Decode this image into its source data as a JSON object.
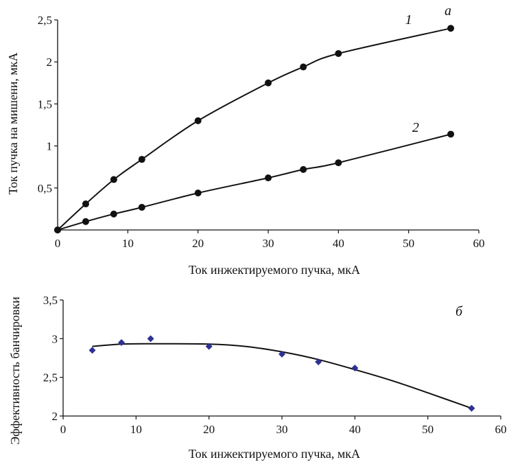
{
  "chart_data": [
    {
      "type": "line",
      "panel_label": "а",
      "xlabel": "Ток инжектируемого пучка, мкА",
      "ylabel": "Ток пучка на мишени, мкА",
      "xlim": [
        0,
        60
      ],
      "ylim": [
        0,
        2.5
      ],
      "x_ticks": [
        "0",
        "10",
        "20",
        "30",
        "40",
        "50",
        "60"
      ],
      "y_ticks": [
        "0,5",
        "1",
        "1,5",
        "2",
        "2,5"
      ],
      "y_tick_values": [
        0.5,
        1,
        1.5,
        2,
        2.5
      ],
      "grid": false,
      "series": [
        {
          "name": "1",
          "color": "#111111",
          "marker": "circle",
          "x": [
            0,
            4,
            8,
            12,
            20,
            30,
            35,
            40,
            56
          ],
          "values": [
            0.0,
            0.31,
            0.6,
            0.84,
            1.3,
            1.75,
            1.94,
            2.1,
            2.4
          ]
        },
        {
          "name": "2",
          "color": "#111111",
          "marker": "circle",
          "x": [
            0,
            4,
            8,
            12,
            20,
            30,
            35,
            40,
            56
          ],
          "values": [
            0.0,
            0.1,
            0.19,
            0.27,
            0.44,
            0.62,
            0.72,
            0.8,
            1.14
          ]
        }
      ]
    },
    {
      "type": "scatter",
      "panel_label": "б",
      "xlabel": "Ток инжектируемого пучка, мкА",
      "ylabel": "Эффективность банчировки",
      "xlim": [
        0,
        60
      ],
      "ylim": [
        2,
        3.5
      ],
      "x_ticks": [
        "0",
        "10",
        "20",
        "30",
        "40",
        "50",
        "60"
      ],
      "y_ticks": [
        "2",
        "2,5",
        "3",
        "3,5"
      ],
      "y_tick_values": [
        2,
        2.5,
        3,
        3.5
      ],
      "grid": false,
      "series": [
        {
          "color": "#2e3192",
          "marker": "diamond",
          "x": [
            4,
            8,
            12,
            20,
            30,
            35,
            40,
            56
          ],
          "values": [
            2.85,
            2.95,
            3.0,
            2.9,
            2.8,
            2.7,
            2.62,
            2.1
          ]
        }
      ],
      "trend": {
        "color": "#111111",
        "x": [
          4,
          8,
          12,
          20,
          25,
          30,
          35,
          40,
          45,
          50,
          56
        ],
        "values": [
          2.9,
          2.93,
          2.935,
          2.93,
          2.9,
          2.83,
          2.73,
          2.6,
          2.46,
          2.3,
          2.1
        ]
      }
    }
  ]
}
